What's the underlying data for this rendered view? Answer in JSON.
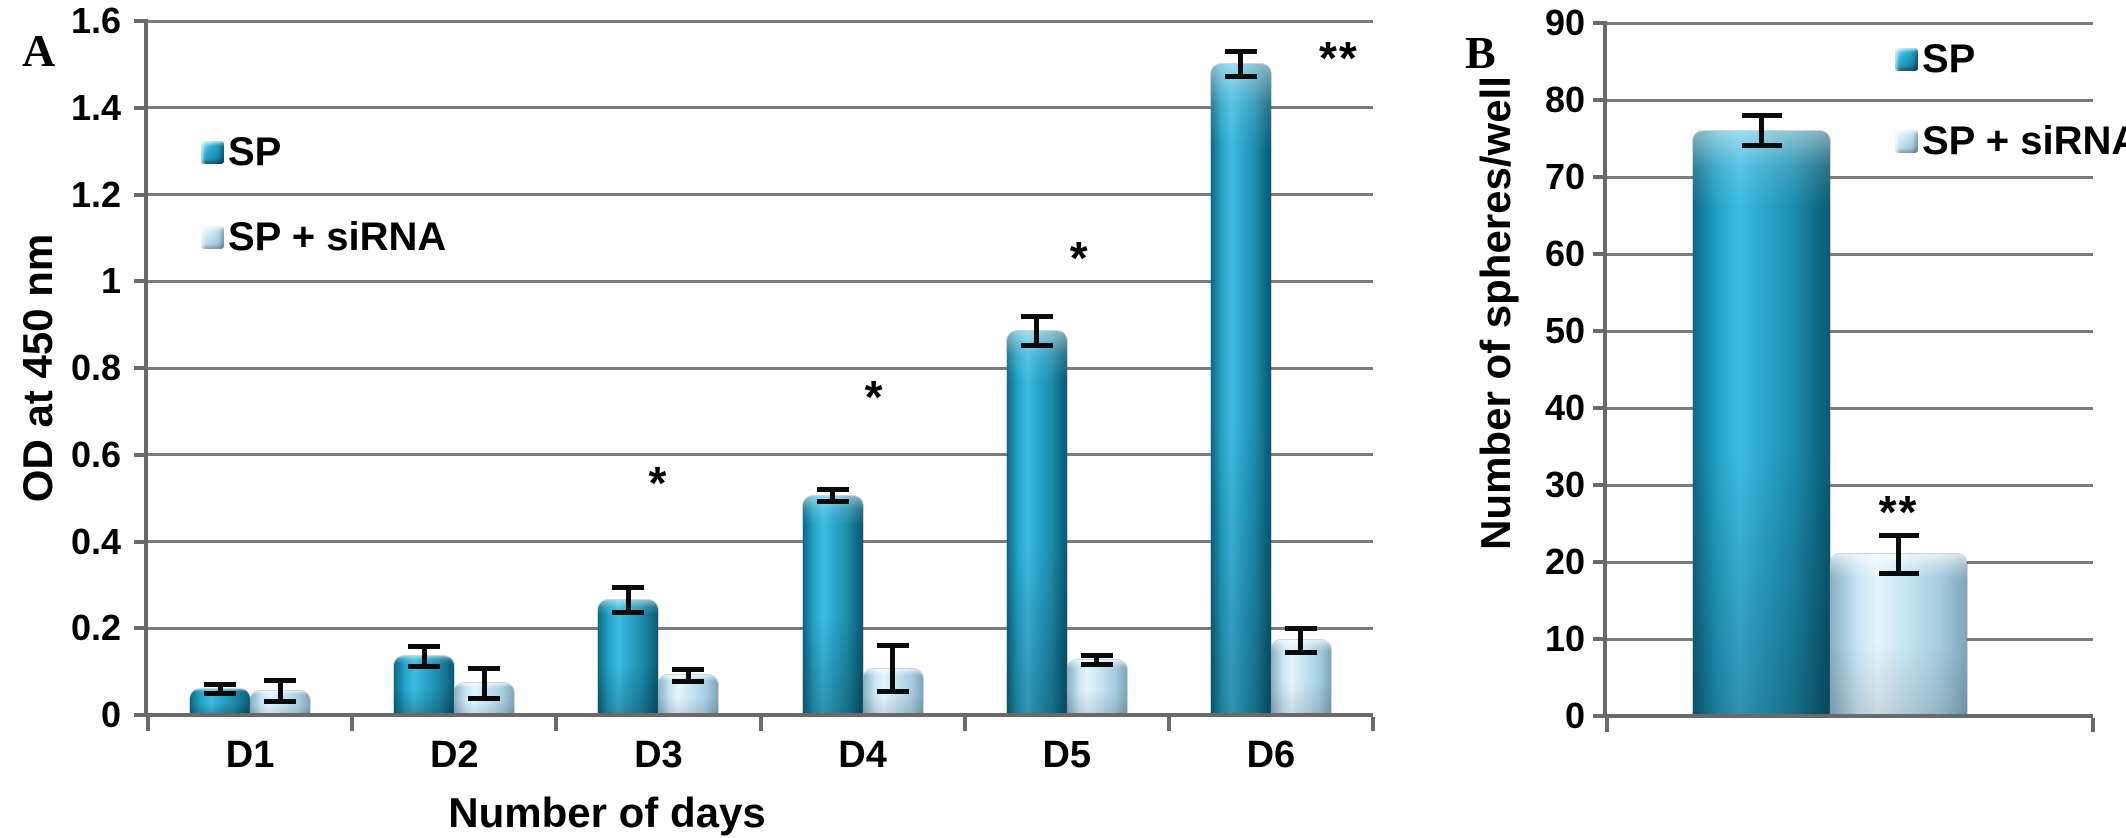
{
  "figure_title": "",
  "chart_data": [
    {
      "type": "bar",
      "panel": "A",
      "xlabel": "Number of days",
      "ylabel": "OD at 450 nm",
      "categories": [
        "D1",
        "D2",
        "D3",
        "D4",
        "D5",
        "D6"
      ],
      "series": [
        {
          "name": "SP",
          "color": "#1f97ba",
          "values": [
            0.06,
            0.135,
            0.265,
            0.505,
            0.885,
            1.5
          ],
          "errors": [
            0.012,
            0.025,
            0.03,
            0.015,
            0.035,
            0.03
          ]
        },
        {
          "name": "SP + siRNA",
          "color": "#c3e3f2",
          "values": [
            0.055,
            0.073,
            0.092,
            0.107,
            0.127,
            0.172
          ],
          "errors": [
            0.025,
            0.035,
            0.015,
            0.055,
            0.012,
            0.028
          ]
        }
      ],
      "ylim": [
        0,
        1.6
      ],
      "ytick_step": 0.2,
      "ytick_labels": [
        "0",
        "0.2",
        "0.4",
        "0.6",
        "0.8",
        "1",
        "1.2",
        "1.4",
        "1.6"
      ],
      "grid": true,
      "legend_position": "top-left-inside",
      "annotations": [
        {
          "text": "*",
          "category": "D3",
          "y": 0.55,
          "dx": 0
        },
        {
          "text": "*",
          "category": "D4",
          "y": 0.75,
          "dx": 12
        },
        {
          "text": "*",
          "category": "D5",
          "y": 1.07,
          "dx": 13
        },
        {
          "text": "**",
          "category": "D6",
          "y": 1.53,
          "dx": 68
        }
      ]
    },
    {
      "type": "bar",
      "panel": "B",
      "xlabel": "",
      "ylabel": "Number of spheres/well",
      "categories": [
        ""
      ],
      "series": [
        {
          "name": "SP",
          "color": "#22a5c8",
          "values": [
            76
          ],
          "errors": [
            2
          ]
        },
        {
          "name": "SP + siRNA",
          "color": "#bfe0f0",
          "values": [
            21
          ],
          "errors": [
            2.5
          ]
        }
      ],
      "ylim": [
        0,
        90
      ],
      "ytick_step": 10,
      "ytick_labels": [
        "0",
        "10",
        "20",
        "30",
        "40",
        "50",
        "60",
        "70",
        "80",
        "90"
      ],
      "grid": true,
      "legend_position": "top-right-inside",
      "annotations": [
        {
          "text": "**",
          "series": "SP + siRNA",
          "y": 27.4,
          "dx": 0
        }
      ]
    }
  ],
  "style": {
    "grid_color": "#7b7b7b",
    "axis_color": "#6a6a6a",
    "error_bar_color": "#0a0a0a"
  }
}
